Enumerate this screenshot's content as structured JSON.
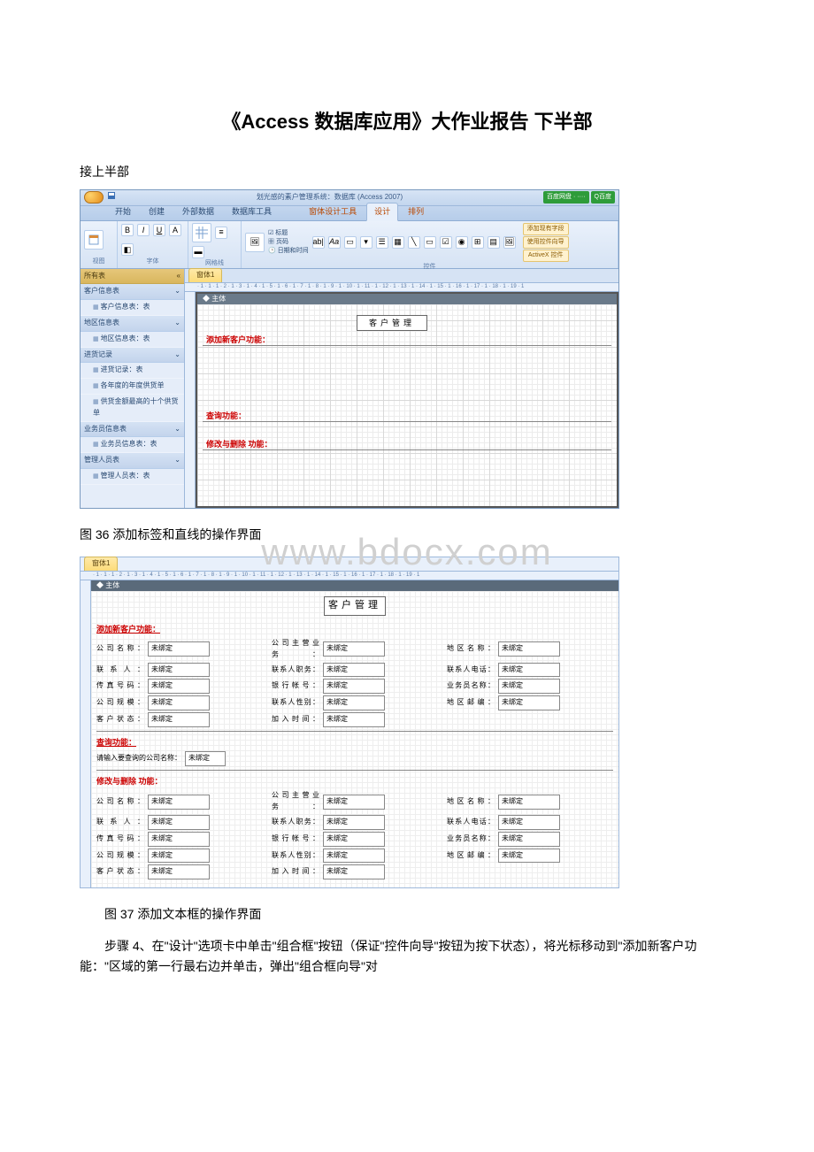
{
  "doc": {
    "title": "《Access 数据库应用》大作业报告 下半部",
    "continue": "接上半部",
    "caption36": "图 36 添加标签和直线的操作界面",
    "caption37": "图 37 添加文本框的操作界面",
    "para4": "步骤 4、在\"设计\"选项卡中单击\"组合框\"按钮（保证\"控件向导\"按钮为按下状态），将光标移动到\"添加新客户功能：\"区域的第一行最右边并单击，弹出\"组合框向导\"对",
    "watermark": "www.bdocx.com"
  },
  "app": {
    "titlebar": "划光感的素户管理系统：数据库 (Access 2007)",
    "badges": [
      "百度网盘 · ····",
      "Q百度"
    ],
    "tabs": [
      "开始",
      "创建",
      "外部数据",
      "数据库工具"
    ],
    "tooltab_group": "窗体设计工具",
    "tooltabs": [
      "设计",
      "排列"
    ],
    "ribbon_groups": [
      "视图",
      "字体",
      "网格线",
      "控件"
    ],
    "ribbon_right": [
      "添加现有字段",
      "使用控件向导",
      "ActiveX 控件"
    ],
    "nav_header": "所有表",
    "nav": [
      {
        "cat": "客户信息表",
        "items": [
          "客户信息表：表"
        ]
      },
      {
        "cat": "地区信息表",
        "items": [
          "地区信息表：表"
        ]
      },
      {
        "cat": "进货记录",
        "items": [
          "进货记录：表",
          "各年度的年度供货单",
          "供货金额最高的十个供货单"
        ]
      },
      {
        "cat": "业务员信息表",
        "items": [
          "业务员信息表：表"
        ]
      },
      {
        "cat": "管理人员表",
        "items": [
          "管理人员表：表"
        ]
      }
    ],
    "doc_tab": "窗体1",
    "section": "◆ 主体",
    "ruler": "· 1 · 1 · 1 · 2 · 1 · 3 · 1 · 4 · 1 · 5 · 1 · 6 · 1 · 7 · 1 · 8 · 1 · 9 · 1 · 10 · 1 · 11 · 1 · 12 · 1 · 13 · 1 · 14 · 1 · 15 · 1 · 16 · 1 · 17 · 1 · 18 · 1 · 19 · 1",
    "labels": {
      "main": "客户管理",
      "add": "添加新客户功能：",
      "query": "查询功能：",
      "modify": "修改与删除 功能："
    }
  },
  "form": {
    "doc_tab": "窗体1",
    "section": "◆ 主体",
    "title": "客户管理",
    "add_head": "添加新客户功能：",
    "query_head": "查询功能：",
    "modify_head": "修改与删除 功能：",
    "query_label": "请输入要查询的公司名称：",
    "unbound": "未绑定",
    "rows": [
      [
        "公司名称",
        "公司主营业务",
        "地区名称"
      ],
      [
        "联系人",
        "联系人职务",
        "联系人电话"
      ],
      [
        "传真号码",
        "银行帐号",
        "业务员名称"
      ],
      [
        "公司规模",
        "联系人性别",
        "地区邮编"
      ],
      [
        "客户状态",
        "加入时间",
        ""
      ]
    ]
  }
}
